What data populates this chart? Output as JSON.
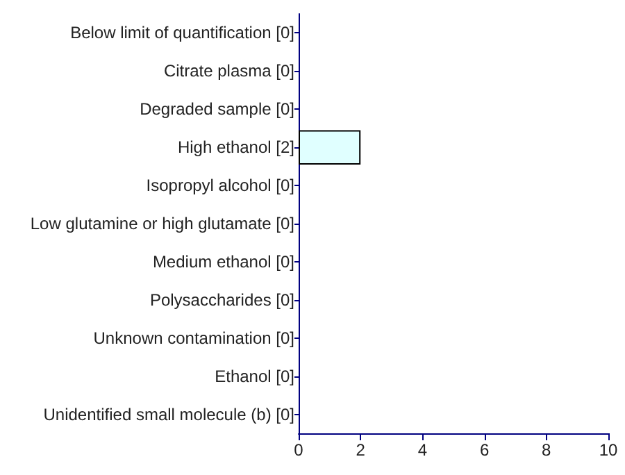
{
  "chart_data": {
    "type": "bar",
    "orientation": "horizontal",
    "categories": [
      "Below limit of quantification [0]",
      "Citrate plasma [0]",
      "Degraded sample [0]",
      "High ethanol [2]",
      "Isopropyl alcohol [0]",
      "Low glutamine or high glutamate [0]",
      "Medium ethanol [0]",
      "Polysaccharides [0]",
      "Unknown contamination [0]",
      "Ethanol [0]",
      "Unidentified small molecule (b) [0]"
    ],
    "values": [
      0,
      0,
      0,
      2,
      0,
      0,
      0,
      0,
      0,
      0,
      0
    ],
    "color": "#e0ffff",
    "xlim": [
      0,
      10
    ],
    "xticks": [
      0,
      2,
      4,
      6,
      8,
      10
    ]
  }
}
